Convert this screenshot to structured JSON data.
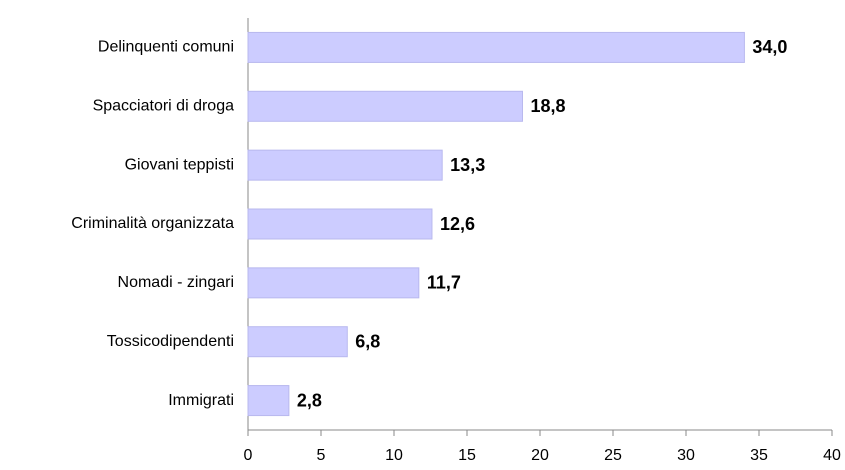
{
  "chart_data": {
    "type": "bar",
    "orientation": "horizontal",
    "categories": [
      "Delinquenti comuni",
      "Spacciatori di droga",
      "Giovani teppisti",
      "Criminalità organizzata",
      "Nomadi - zingari",
      "Tossicodipendenti",
      "Immigrati"
    ],
    "values": [
      34.0,
      18.8,
      13.3,
      12.6,
      11.7,
      6.8,
      2.8
    ],
    "value_labels": [
      "34,0",
      "18,8",
      "13,3",
      "12,6",
      "11,7",
      "6,8",
      "2,8"
    ],
    "color": "#ccccff",
    "xlim": [
      0,
      40
    ],
    "xticks": [
      0,
      5,
      10,
      15,
      20,
      25,
      30,
      35,
      40
    ],
    "grid": false
  }
}
